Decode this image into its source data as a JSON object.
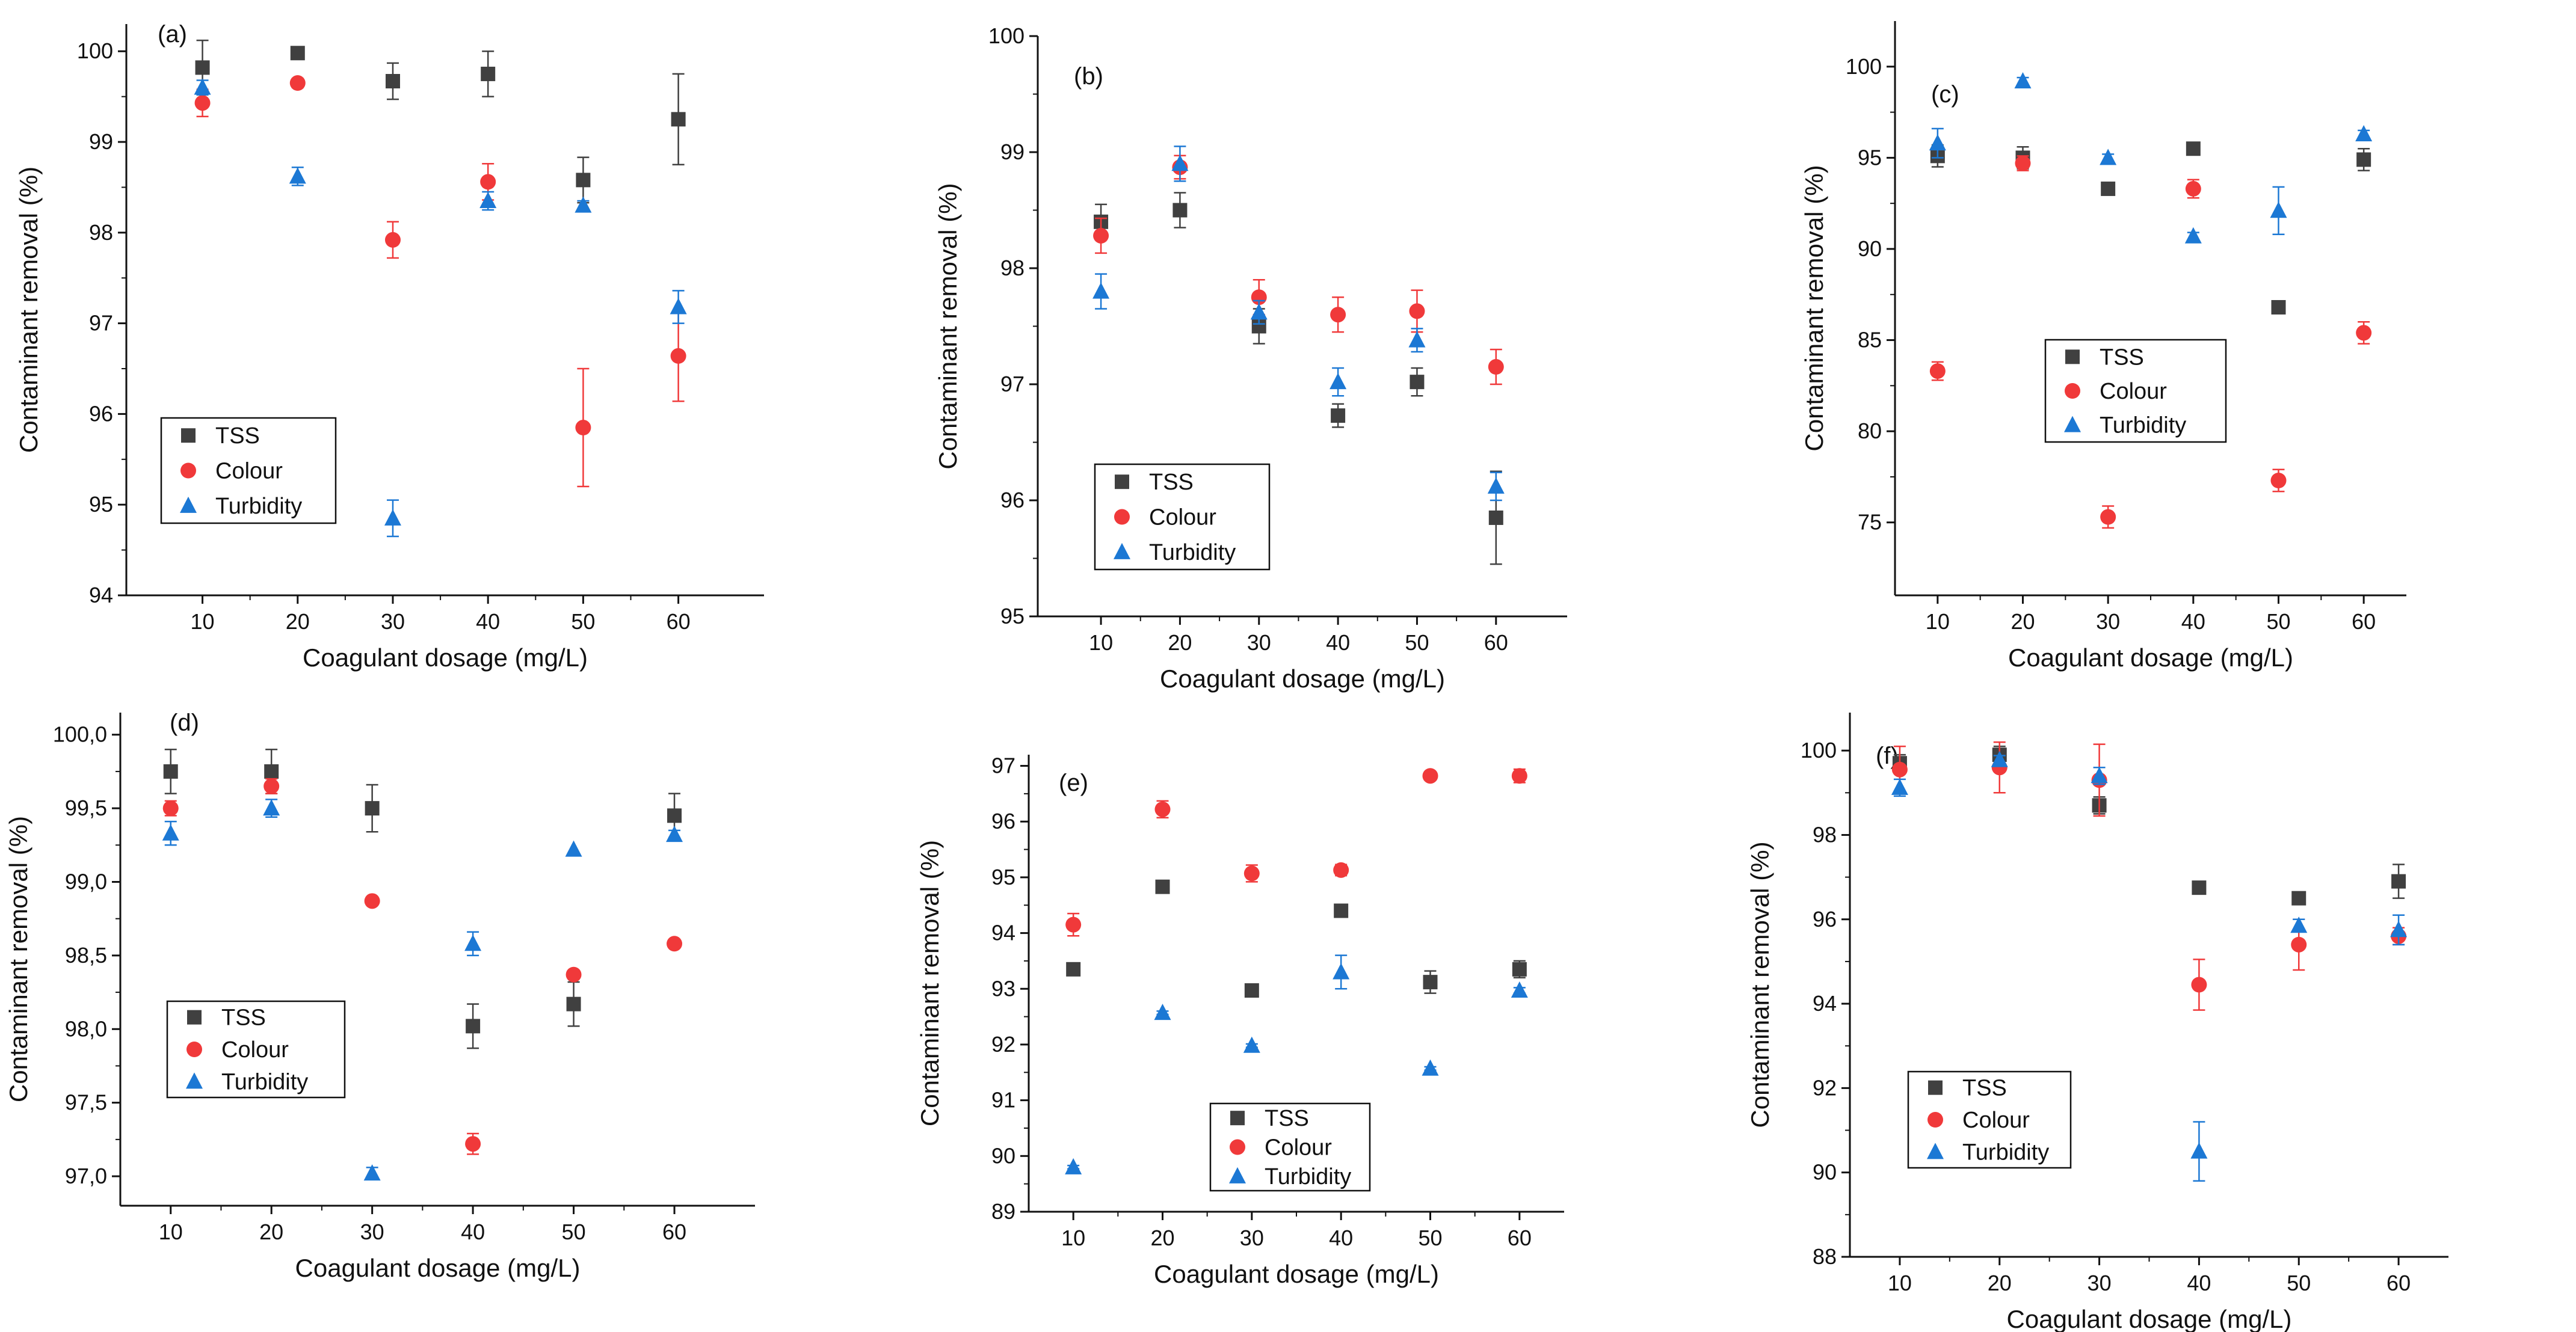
{
  "figure": {
    "colors": {
      "TSS": "#404040",
      "Colour": "#f0393a",
      "Turbidity": "#1c78d4"
    }
  },
  "chart_data": [
    {
      "panel": "(a)",
      "type": "scatter",
      "xlabel": "Coagulant dosage (mg/L)",
      "ylabel": "Contaminant removal (%)",
      "x": [
        10,
        20,
        30,
        40,
        50,
        60
      ],
      "xlim": [
        2,
        69
      ],
      "ylim": [
        94,
        100.3
      ],
      "xticks": [
        10,
        20,
        30,
        40,
        50,
        60
      ],
      "yticks": [
        94,
        95,
        96,
        97,
        98,
        99,
        100
      ],
      "ytick_labels": [
        "94",
        "95",
        "96",
        "97",
        "98",
        "99",
        "100"
      ],
      "legend": "lower-left",
      "series": [
        {
          "name": "TSS",
          "marker": "square",
          "values": [
            99.82,
            99.98,
            99.67,
            99.75,
            98.58,
            99.25
          ],
          "errors": [
            0.3,
            0,
            0.2,
            0.25,
            0.25,
            0.5
          ]
        },
        {
          "name": "Colour",
          "marker": "circle",
          "values": [
            99.43,
            99.65,
            97.92,
            98.56,
            95.85,
            96.64
          ],
          "errors": [
            0.15,
            0.05,
            0.2,
            0.2,
            0.65,
            0.5
          ]
        },
        {
          "name": "Turbidity",
          "marker": "triangle",
          "values": [
            99.6,
            98.62,
            94.85,
            98.35,
            98.3,
            97.18
          ],
          "errors": [
            0.08,
            0.1,
            0.2,
            0.1,
            0.05,
            0.18
          ]
        }
      ]
    },
    {
      "panel": "(b)",
      "type": "scatter",
      "xlabel": "Coagulant dosage (mg/L)",
      "ylabel": "Contaminant removal (%)",
      "x": [
        10,
        20,
        30,
        40,
        50,
        60
      ],
      "xlim": [
        2,
        69
      ],
      "ylim": [
        95,
        100
      ],
      "xticks": [
        10,
        20,
        30,
        40,
        50,
        60
      ],
      "yticks": [
        95,
        96,
        97,
        98,
        99,
        100
      ],
      "ytick_labels": [
        "95",
        "96",
        "97",
        "98",
        "99",
        "100"
      ],
      "legend": "lower-left",
      "series": [
        {
          "name": "TSS",
          "marker": "square",
          "values": [
            98.4,
            98.5,
            97.5,
            96.73,
            97.02,
            95.85
          ],
          "errors": [
            0.15,
            0.15,
            0.15,
            0.1,
            0.12,
            0.4
          ]
        },
        {
          "name": "Colour",
          "marker": "circle",
          "values": [
            98.28,
            98.87,
            97.75,
            97.6,
            97.63,
            97.15
          ],
          "errors": [
            0.15,
            0.1,
            0.15,
            0.15,
            0.18,
            0.15
          ]
        },
        {
          "name": "Turbidity",
          "marker": "triangle",
          "values": [
            97.8,
            98.9,
            97.62,
            97.02,
            97.38,
            96.12
          ],
          "errors": [
            0.15,
            0.15,
            0.1,
            0.12,
            0.1,
            0.12
          ]
        }
      ]
    },
    {
      "panel": "(c)",
      "type": "scatter",
      "xlabel": "Coagulant dosage (mg/L)",
      "ylabel": "Contaminant removal (%)",
      "x": [
        10,
        20,
        30,
        40,
        50,
        60
      ],
      "xlim": [
        5,
        65
      ],
      "ylim": [
        71,
        102.5
      ],
      "xticks": [
        10,
        20,
        30,
        40,
        50,
        60
      ],
      "yticks": [
        75,
        80,
        85,
        90,
        95,
        100
      ],
      "ytick_labels": [
        "75",
        "80",
        "85",
        "90",
        "95",
        "100"
      ],
      "legend": "center-left",
      "series": [
        {
          "name": "TSS",
          "marker": "square",
          "values": [
            95.1,
            95.0,
            93.3,
            95.5,
            86.8,
            94.9
          ],
          "errors": [
            0.6,
            0.6,
            0.3,
            0.3,
            0.2,
            0.6
          ]
        },
        {
          "name": "Colour",
          "marker": "circle",
          "values": [
            83.3,
            94.7,
            75.3,
            93.3,
            77.3,
            85.4
          ],
          "errors": [
            0.5,
            0.4,
            0.6,
            0.5,
            0.6,
            0.6
          ]
        },
        {
          "name": "Turbidity",
          "marker": "triangle",
          "values": [
            95.8,
            99.2,
            95.0,
            90.7,
            92.1,
            96.3
          ],
          "errors": [
            0.8,
            0.2,
            0.2,
            0.2,
            1.3,
            0.2
          ]
        }
      ]
    },
    {
      "panel": "(d)",
      "type": "scatter",
      "xlabel": "Coagulant dosage (mg/L)",
      "ylabel": "Contaminant removal (%)",
      "x": [
        10,
        20,
        30,
        40,
        50,
        60
      ],
      "xlim": [
        5,
        68
      ],
      "ylim": [
        96.8,
        100.15
      ],
      "xticks": [
        10,
        20,
        30,
        40,
        50,
        60
      ],
      "yticks": [
        97.0,
        97.5,
        98.0,
        98.5,
        99.0,
        99.5,
        100.0
      ],
      "ytick_labels": [
        "97,0",
        "97,5",
        "98,0",
        "98,5",
        "99,0",
        "99,5",
        "100,0"
      ],
      "legend": "lower-left",
      "series": [
        {
          "name": "TSS",
          "marker": "square",
          "values": [
            99.75,
            99.75,
            99.5,
            98.02,
            98.17,
            99.45
          ],
          "errors": [
            0.15,
            0.15,
            0.16,
            0.15,
            0.15,
            0.15
          ]
        },
        {
          "name": "Colour",
          "marker": "circle",
          "values": [
            99.5,
            99.65,
            98.87,
            97.22,
            98.37,
            98.58
          ],
          "errors": [
            0.05,
            0.05,
            0.02,
            0.07,
            0,
            0
          ]
        },
        {
          "name": "Turbidity",
          "marker": "triangle",
          "values": [
            99.33,
            99.5,
            97.02,
            98.58,
            99.22,
            99.32
          ],
          "errors": [
            0.08,
            0.06,
            0.04,
            0.08,
            0,
            0.03
          ]
        }
      ]
    },
    {
      "panel": "(e)",
      "type": "scatter",
      "xlabel": "Coagulant dosage (mg/L)",
      "ylabel": "Contaminant removal (%)",
      "x": [
        10,
        20,
        30,
        40,
        50,
        60
      ],
      "xlim": [
        5,
        65
      ],
      "ylim": [
        89,
        97.2
      ],
      "xticks": [
        10,
        20,
        30,
        40,
        50,
        60
      ],
      "yticks": [
        89,
        90,
        91,
        92,
        93,
        94,
        95,
        96,
        97
      ],
      "ytick_labels": [
        "89",
        "90",
        "91",
        "92",
        "93",
        "94",
        "95",
        "96",
        "97"
      ],
      "legend": "bottom-right",
      "series": [
        {
          "name": "TSS",
          "marker": "square",
          "values": [
            93.35,
            94.83,
            92.97,
            94.4,
            93.12,
            93.35
          ],
          "errors": [
            0.1,
            0.1,
            0.05,
            0.1,
            0.2,
            0.15
          ]
        },
        {
          "name": "Colour",
          "marker": "circle",
          "values": [
            94.15,
            96.22,
            95.07,
            95.13,
            96.82,
            96.82
          ],
          "errors": [
            0.2,
            0.15,
            0.15,
            0.1,
            0.05,
            0.12
          ]
        },
        {
          "name": "Turbidity",
          "marker": "triangle",
          "values": [
            89.8,
            92.57,
            91.98,
            93.3,
            91.57,
            92.97
          ],
          "errors": [
            0.03,
            0.03,
            0.03,
            0.3,
            0.03,
            0.05
          ]
        }
      ]
    },
    {
      "panel": "(f)",
      "type": "scatter",
      "xlabel": "Coagulant dosage (mg/L)",
      "ylabel": "Contaminant removal (%)",
      "x": [
        10,
        20,
        30,
        40,
        50,
        60
      ],
      "xlim": [
        5,
        65
      ],
      "ylim": [
        88,
        100.9
      ],
      "xticks": [
        10,
        20,
        30,
        40,
        50,
        60
      ],
      "yticks": [
        88,
        90,
        92,
        94,
        96,
        98,
        100
      ],
      "ytick_labels": [
        "88",
        "90",
        "92",
        "94",
        "96",
        "98",
        "100"
      ],
      "legend": "center-left",
      "series": [
        {
          "name": "TSS",
          "marker": "square",
          "values": [
            99.7,
            99.9,
            98.7,
            96.75,
            96.5,
            96.9
          ],
          "errors": [
            0.2,
            0.2,
            0.2,
            0.1,
            0.1,
            0.4
          ]
        },
        {
          "name": "Colour",
          "marker": "circle",
          "values": [
            99.55,
            99.6,
            99.3,
            94.45,
            95.4,
            95.6
          ],
          "errors": [
            0.55,
            0.6,
            0.85,
            0.6,
            0.6,
            0.2
          ]
        },
        {
          "name": "Turbidity",
          "marker": "triangle",
          "values": [
            99.12,
            99.78,
            99.4,
            90.5,
            95.85,
            95.75
          ],
          "errors": [
            0.2,
            0.1,
            0.2,
            0.7,
            0.15,
            0.35
          ]
        }
      ]
    }
  ]
}
